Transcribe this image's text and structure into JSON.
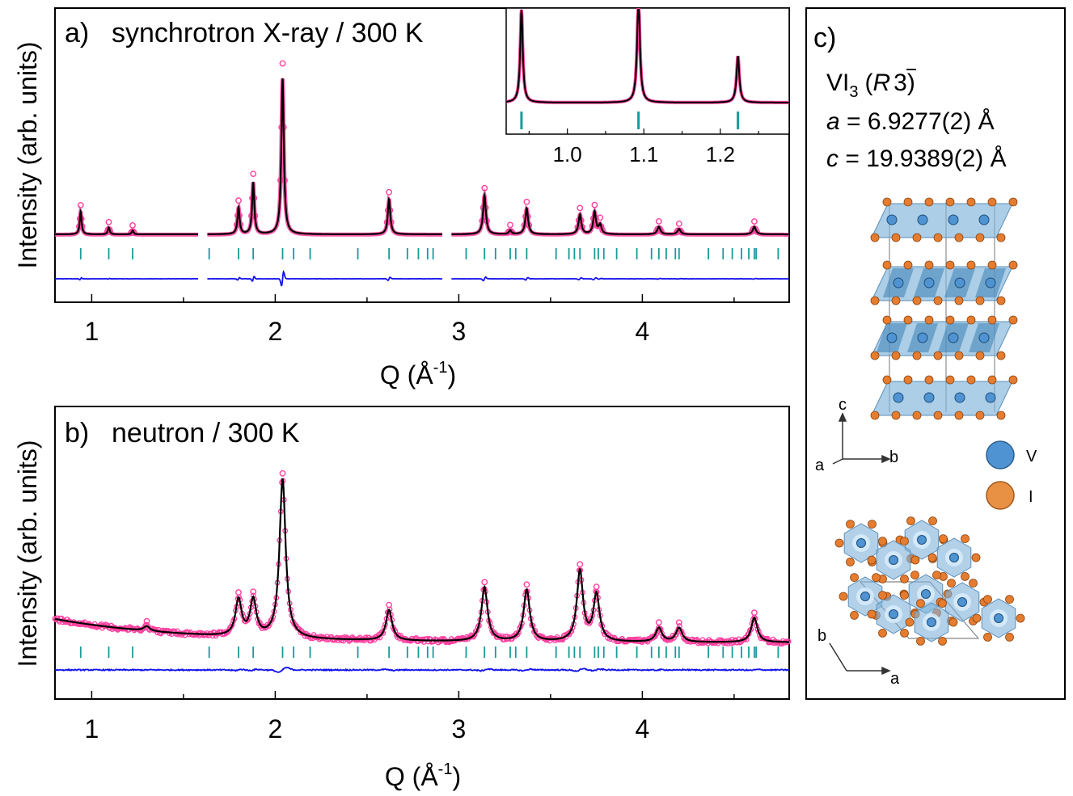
{
  "panels": {
    "a": {
      "label": "a)",
      "title": "synchrotron X-ray / 300 K"
    },
    "b": {
      "label": "b)",
      "title": "neutron / 300 K"
    },
    "c": {
      "label": "c)"
    }
  },
  "axes": {
    "ylabel": "Intensity (arb. units)",
    "xlabel_main": "Q (Å",
    "xlabel_sup": "-1",
    "xlabel_close": ")"
  },
  "structure": {
    "formula_main": "VI",
    "formula_sub": "3",
    "space_group_open": "(",
    "space_group_R": "R",
    "space_group_3": "3",
    "space_group_close": ")",
    "a_sym": "a",
    "a_value": " = 6.9277(2) Å",
    "c_sym": "c",
    "c_value": " = 19.9389(2) Å",
    "axis_c": "c",
    "axis_a": "a",
    "axis_b": "b",
    "axis_b2": "b",
    "axis_a2": "a",
    "legend_V": "V",
    "legend_I": "I",
    "colors": {
      "V": "#4f93d2",
      "I": "#e07a2c",
      "octahedra": "#7fb3da"
    }
  },
  "colors": {
    "observed": "#ff3f9f",
    "calc": "#000000",
    "difference": "#1010ee",
    "ticks": "#1a9a9a"
  },
  "chart_data": [
    {
      "id": "a",
      "type": "line",
      "title": "synchrotron X-ray / 300 K",
      "xlabel": "Q (Å-1)",
      "ylabel": "Intensity (arb. units)",
      "xlim": [
        0.8,
        4.8
      ],
      "xticks": [
        1,
        2,
        3,
        4
      ],
      "baseline": 1.0,
      "excluded_regions": [
        [
          1.58,
          1.63
        ],
        [
          2.91,
          2.96
        ]
      ],
      "peaks": [
        {
          "x": 0.94,
          "h": 3.0,
          "w": 0.006
        },
        {
          "x": 1.093,
          "h": 0.9,
          "w": 0.006
        },
        {
          "x": 1.223,
          "h": 0.5,
          "w": 0.006
        },
        {
          "x": 1.8,
          "h": 3.5,
          "w": 0.007
        },
        {
          "x": 1.88,
          "h": 6.8,
          "w": 0.007
        },
        {
          "x": 2.04,
          "h": 20.5,
          "w": 0.008
        },
        {
          "x": 2.62,
          "h": 4.6,
          "w": 0.008
        },
        {
          "x": 3.14,
          "h": 5.1,
          "w": 0.009
        },
        {
          "x": 3.28,
          "h": 0.5,
          "w": 0.008
        },
        {
          "x": 3.37,
          "h": 3.4,
          "w": 0.009
        },
        {
          "x": 3.66,
          "h": 2.6,
          "w": 0.009
        },
        {
          "x": 3.74,
          "h": 2.9,
          "w": 0.009
        },
        {
          "x": 3.77,
          "h": 1.2,
          "w": 0.009
        },
        {
          "x": 4.09,
          "h": 1.0,
          "w": 0.01
        },
        {
          "x": 4.2,
          "h": 0.7,
          "w": 0.01
        },
        {
          "x": 4.61,
          "h": 1.0,
          "w": 0.01
        }
      ],
      "bragg_ticks": [
        0.94,
        1.093,
        1.223,
        1.64,
        1.8,
        1.88,
        2.04,
        2.1,
        2.19,
        2.45,
        2.62,
        2.72,
        2.78,
        2.83,
        2.86,
        3.04,
        3.14,
        3.2,
        3.28,
        3.31,
        3.37,
        3.53,
        3.6,
        3.63,
        3.66,
        3.74,
        3.76,
        3.79,
        3.86,
        3.97,
        4.05,
        4.09,
        4.13,
        4.18,
        4.2,
        4.36,
        4.44,
        4.49,
        4.54,
        4.58,
        4.61,
        4.62,
        4.74
      ]
    },
    {
      "id": "a-inset",
      "type": "line",
      "xlim": [
        0.92,
        1.29
      ],
      "xticks": [
        1.0,
        1.1,
        1.2
      ],
      "xtick_labels": [
        "1.0",
        "1.1",
        "1.2"
      ],
      "bragg_ticks": [
        0.94,
        1.093,
        1.223
      ]
    },
    {
      "id": "b",
      "type": "line",
      "title": "neutron / 300 K",
      "xlabel": "Q (Å-1)",
      "ylabel": "Intensity (arb. units)",
      "xlim": [
        0.8,
        4.8
      ],
      "xticks": [
        1,
        2,
        3,
        4
      ],
      "background": {
        "base": 1.0,
        "amp": 1.0,
        "decay": 0.7
      },
      "peaks": [
        {
          "x": 1.3,
          "h": 0.2,
          "w": 0.02
        },
        {
          "x": 1.8,
          "h": 1.55,
          "w": 0.02
        },
        {
          "x": 1.88,
          "h": 1.55,
          "w": 0.02
        },
        {
          "x": 2.04,
          "h": 6.8,
          "w": 0.02
        },
        {
          "x": 2.62,
          "h": 1.3,
          "w": 0.02
        },
        {
          "x": 3.14,
          "h": 2.3,
          "w": 0.02
        },
        {
          "x": 3.37,
          "h": 2.2,
          "w": 0.02
        },
        {
          "x": 3.66,
          "h": 3.0,
          "w": 0.02
        },
        {
          "x": 3.75,
          "h": 2.0,
          "w": 0.02
        },
        {
          "x": 4.09,
          "h": 0.6,
          "w": 0.02
        },
        {
          "x": 4.2,
          "h": 0.6,
          "w": 0.02
        },
        {
          "x": 4.61,
          "h": 1.05,
          "w": 0.02
        }
      ],
      "bragg_ticks": [
        0.94,
        1.093,
        1.223,
        1.64,
        1.8,
        1.88,
        2.04,
        2.1,
        2.19,
        2.45,
        2.62,
        2.72,
        2.78,
        2.83,
        2.86,
        3.04,
        3.14,
        3.2,
        3.28,
        3.31,
        3.37,
        3.53,
        3.6,
        3.63,
        3.66,
        3.74,
        3.76,
        3.79,
        3.86,
        3.97,
        4.05,
        4.09,
        4.13,
        4.18,
        4.2,
        4.36,
        4.44,
        4.49,
        4.54,
        4.58,
        4.61,
        4.62,
        4.74
      ]
    }
  ]
}
